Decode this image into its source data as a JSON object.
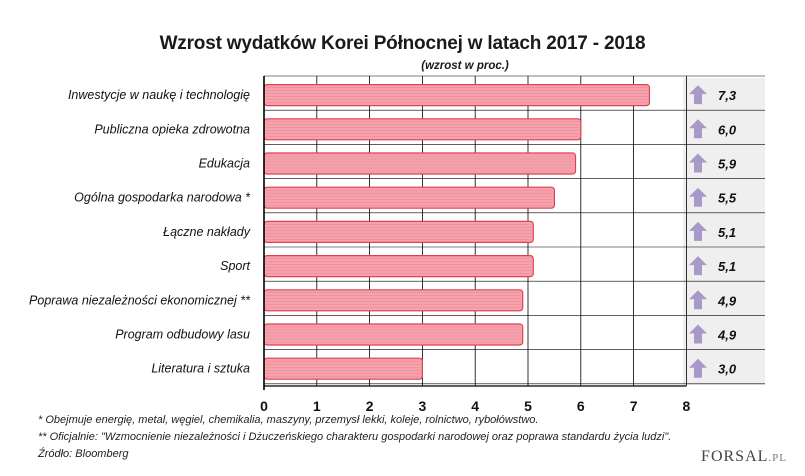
{
  "title": "Wzrost wydatków Korei Północnej w latach 2017 - 2018",
  "subtitle": "(wzrost w proc.)",
  "footnotes": [
    "* Obejmuje energię, metal, węgiel, chemikalia, maszyny, przemysł lekki, koleje, rolnictwo, rybołówstwo.",
    "** Oficjalnie: \"Wzmocnienie niezależności i Dżuczeńskiego charakteru gospodarki narodowej oraz poprawa standardu życia ludzi\".",
    "Źródło: Bloomberg"
  ],
  "logo": {
    "main": "FORSAL",
    "suffix": ".PL"
  },
  "colors": {
    "bar_fill": "#f4a3ae",
    "bar_stroke": "#e0404f",
    "arrow": "#a899c9",
    "grid": "#000000",
    "panel": "#efefef"
  },
  "chart_data": {
    "type": "bar",
    "orientation": "horizontal",
    "categories": [
      "Inwestycje w naukę i technologię",
      "Publiczna opieka zdrowotna",
      "Edukacja",
      "Ogólna gospodarka narodowa *",
      "Łączne nakłady",
      "Sport",
      "Poprawa niezależności ekonomicznej **",
      "Program odbudowy lasu",
      "Literatura i sztuka"
    ],
    "values": [
      7.3,
      6.0,
      5.9,
      5.5,
      5.1,
      5.1,
      4.9,
      4.9,
      3.0
    ],
    "value_labels": [
      "7,3",
      "6,0",
      "5,9",
      "5,5",
      "5,1",
      "5,1",
      "4,9",
      "4,9",
      "3,0"
    ],
    "xlim": [
      0,
      8
    ],
    "xticks": [
      "0",
      "1",
      "2",
      "3",
      "4",
      "5",
      "6",
      "7",
      "8"
    ],
    "grid": true,
    "value_icon": "up-arrow-icon"
  }
}
